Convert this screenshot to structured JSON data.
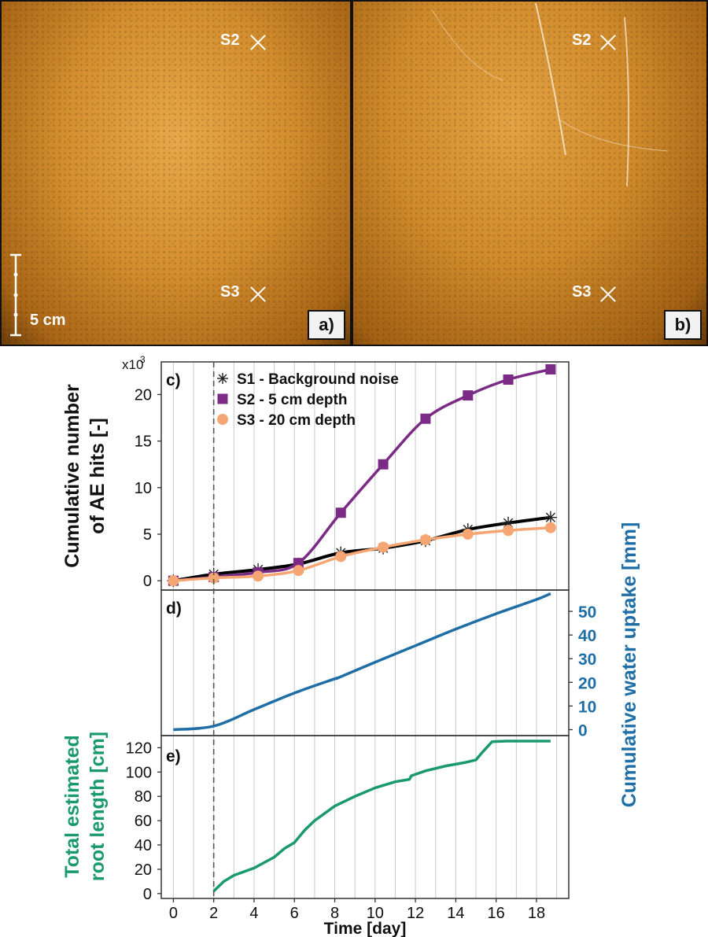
{
  "photos": {
    "a": {
      "letter": "a)",
      "s2": "S2",
      "s3": "S3",
      "scale": "5 cm"
    },
    "b": {
      "letter": "b)",
      "s2": "S2",
      "s3": "S3"
    }
  },
  "chart_data": [
    {
      "type": "line",
      "panel_label": "c)",
      "ylabel": "Cumulative number\nof AE hits [-]",
      "y_multiplier_label": "x10",
      "y_multiplier_exp": "3",
      "xlim": [
        -0.6,
        19.6
      ],
      "ylim": [
        -1,
        23.5
      ],
      "yticks": [
        0,
        5,
        10,
        15,
        20
      ],
      "legend": "top-left",
      "grid": "vertical",
      "series": [
        {
          "name": "S1 - Background noise",
          "color": "#000000",
          "marker": "asterisk",
          "x": [
            0,
            2.0,
            4.2,
            6.2,
            8.3,
            10.4,
            12.5,
            14.6,
            16.6,
            18.7
          ],
          "y": [
            0,
            0.7,
            1.2,
            1.8,
            3.0,
            3.5,
            4.3,
            5.5,
            6.2,
            6.8
          ]
        },
        {
          "name": "S2 - 5 cm depth",
          "color": "#7b2a86",
          "marker": "square",
          "x": [
            0,
            2.0,
            4.2,
            6.2,
            8.3,
            10.4,
            12.5,
            14.6,
            16.6,
            18.7
          ],
          "y": [
            0,
            0.4,
            0.9,
            1.9,
            7.3,
            12.5,
            17.4,
            19.9,
            21.6,
            22.7
          ]
        },
        {
          "name": "S3 - 20 cm depth",
          "color": "#f5a673",
          "marker": "circle",
          "x": [
            0,
            2.0,
            4.2,
            6.2,
            8.3,
            10.4,
            12.5,
            14.6,
            16.6,
            18.7
          ],
          "y": [
            0,
            0.3,
            0.5,
            1.1,
            2.6,
            3.6,
            4.4,
            5.0,
            5.4,
            5.7
          ]
        }
      ]
    },
    {
      "type": "line",
      "panel_label": "d)",
      "ylabel": "Cumulative water uptake [mm]",
      "ylabel_color": "#1f6ea6",
      "ylim": [
        -2.5,
        59
      ],
      "yticks": [
        0,
        10,
        20,
        30,
        40,
        50
      ],
      "y_axis_side": "right",
      "series": [
        {
          "color": "#1f6ea6",
          "x": [
            0,
            2.0,
            4.0,
            6.0,
            8.0,
            8.2,
            10.0,
            12.0,
            14.0,
            16.0,
            18.0,
            18.7
          ],
          "y": [
            0,
            1.5,
            8.5,
            15.5,
            21.5,
            22.0,
            28.5,
            35.5,
            42.5,
            49.0,
            55.0,
            57.5
          ]
        }
      ]
    },
    {
      "type": "line",
      "panel_label": "e)",
      "ylabel": "Total estimated\nroot length [cm]",
      "ylabel_color": "#1a9a6c",
      "xlabel": "Time [day]",
      "ylim": [
        -4,
        130
      ],
      "yticks": [
        0,
        20,
        40,
        60,
        80,
        100,
        120
      ],
      "xticks": [
        0,
        2,
        4,
        6,
        8,
        10,
        12,
        14,
        16,
        18
      ],
      "series": [
        {
          "color": "#1a9a6c",
          "x": [
            2.0,
            2.5,
            3.0,
            4.0,
            5.0,
            5.5,
            6.0,
            6.5,
            7.0,
            8.0,
            9.0,
            10.0,
            11.0,
            11.7,
            11.8,
            12.5,
            13.5,
            14.5,
            15.0,
            15.3,
            15.8,
            16.5,
            17.5,
            18.7
          ],
          "y": [
            2,
            10,
            15,
            21,
            30,
            37,
            42,
            52,
            60,
            72,
            80,
            87,
            92,
            94,
            97,
            101,
            105,
            108,
            110,
            116,
            125,
            125.5,
            125.5,
            125.5
          ]
        }
      ]
    }
  ],
  "dashed_line_x": 2
}
